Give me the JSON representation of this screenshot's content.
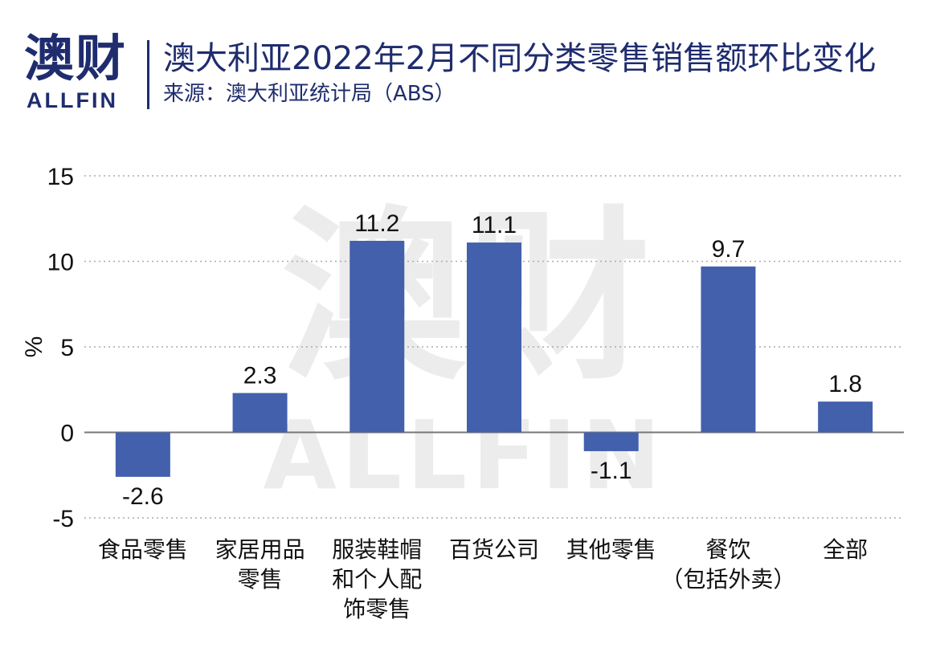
{
  "header": {
    "logo_cn": "澳财",
    "logo_en": "ALLFIN",
    "title": "澳大利亚2022年2月不同分类零售销售额环比变化",
    "subtitle": "来源：澳大利亚统计局（ABS）"
  },
  "watermark": {
    "cn": "澳财",
    "en": "ALLFIN"
  },
  "colors": {
    "bar": "#4360ad",
    "brand": "#1f2c6e",
    "grid": "#aaaaaa",
    "axis": "#777777",
    "watermark": "#ececec"
  },
  "chart_data": {
    "type": "bar",
    "ylabel": "%",
    "ylim": [
      -5,
      15
    ],
    "yticks": [
      15,
      10,
      5,
      0,
      -5
    ],
    "grid": true,
    "categories": [
      [
        "食品零售"
      ],
      [
        "家居用品",
        "零售"
      ],
      [
        "服装鞋帽",
        "和个人配",
        "饰零售"
      ],
      [
        "百货公司"
      ],
      [
        "其他零售"
      ],
      [
        "餐饮",
        "（包括外卖）"
      ],
      [
        "全部"
      ]
    ],
    "values": [
      -2.6,
      2.3,
      11.2,
      11.1,
      -1.1,
      9.7,
      1.8
    ],
    "labels": [
      "-2.6",
      "2.3",
      "11.2",
      "11.1",
      "-1.1",
      "9.7",
      "1.8"
    ]
  }
}
